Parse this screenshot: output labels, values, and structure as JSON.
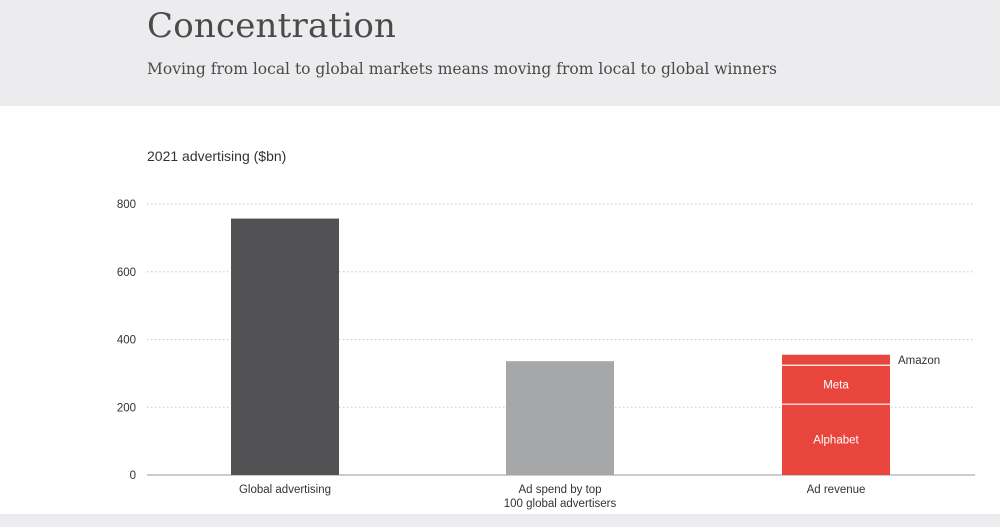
{
  "header": {
    "title": "Concentration",
    "subtitle": "Moving from local to global markets means moving from local to global winners"
  },
  "chart_data": {
    "type": "bar",
    "title": "2021 advertising ($bn)",
    "xlabel": "",
    "ylabel": "",
    "ylim": [
      0,
      800
    ],
    "yticks": [
      0,
      200,
      400,
      600,
      800
    ],
    "grid": true,
    "categories": [
      [
        "Global advertising"
      ],
      [
        "Ad spend by top",
        "100 global advertisers"
      ],
      [
        "Ad revenue"
      ]
    ],
    "bars": [
      {
        "value": 757,
        "color": "#525254"
      },
      {
        "value": 336,
        "color": "#a6a7a9"
      },
      {
        "stacked": true,
        "segments": [
          {
            "name": "Alphabet",
            "value": 209,
            "color": "#e8463d",
            "label_position": "inside"
          },
          {
            "name": "Meta",
            "value": 115,
            "color": "#e8463d",
            "label_position": "inside"
          },
          {
            "name": "Amazon",
            "value": 31,
            "color": "#e8463d",
            "label_position": "outside"
          }
        ]
      }
    ]
  }
}
